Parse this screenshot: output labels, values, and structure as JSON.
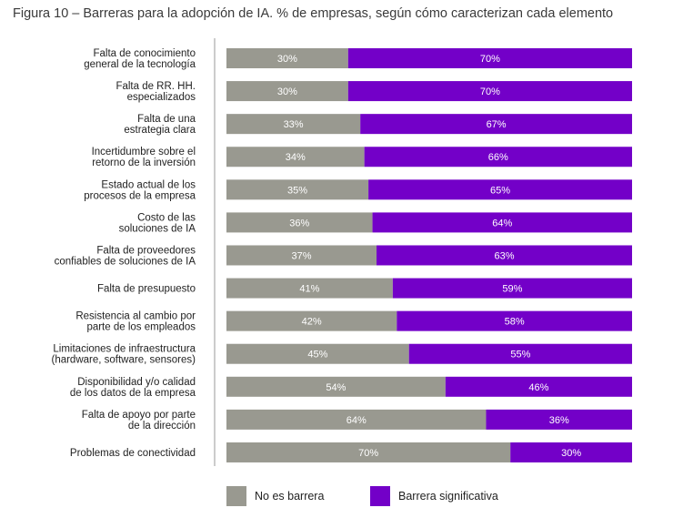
{
  "chart_data": {
    "type": "bar",
    "orientation": "horizontal",
    "stacked": true,
    "title": "Figura 10 – Barreras para la adopción de IA. % de empresas, según cómo caracterizan cada elemento",
    "xlabel": "",
    "ylabel": "",
    "xlim": [
      0,
      100
    ],
    "grid": false,
    "legend_position": "bottom",
    "categories": [
      [
        "Falta de conocimiento",
        "general de la tecnología"
      ],
      [
        "Falta de RR. HH.",
        "especializados"
      ],
      [
        "Falta de una",
        "estrategia clara"
      ],
      [
        "Incertidumbre sobre el",
        "retorno de la inversión"
      ],
      [
        "Estado actual de los",
        "procesos de la empresa"
      ],
      [
        "Costo de las",
        "soluciones de IA"
      ],
      [
        "Falta de proveedores",
        "confiables de soluciones de IA"
      ],
      [
        "Falta de presupuesto"
      ],
      [
        "Resistencia al cambio por",
        "parte de los empleados"
      ],
      [
        "Limitaciones de infraestructura",
        "(hardware, software, sensores)"
      ],
      [
        "Disponibilidad y/o calidad",
        "de los datos de la empresa"
      ],
      [
        "Falta de apoyo por parte",
        "de la dirección"
      ],
      [
        "Problemas de conectividad"
      ]
    ],
    "series": [
      {
        "name": "No es barrera",
        "color": "#999990",
        "values": [
          30,
          30,
          33,
          34,
          35,
          36,
          37,
          41,
          42,
          45,
          54,
          64,
          70
        ],
        "labels": [
          "30%",
          "30%",
          "33%",
          "34%",
          "35%",
          "36%",
          "37%",
          "41%",
          "42%",
          "45%",
          "54%",
          "64%",
          "70%"
        ]
      },
      {
        "name": "Barrera significativa",
        "color": "#7300c8",
        "values": [
          70,
          70,
          67,
          66,
          65,
          64,
          63,
          59,
          58,
          55,
          46,
          36,
          30
        ],
        "labels": [
          "70%",
          "70%",
          "67%",
          "66%",
          "65%",
          "64%",
          "63%",
          "59%",
          "58%",
          "55%",
          "46%",
          "36%",
          "30%"
        ]
      }
    ]
  }
}
